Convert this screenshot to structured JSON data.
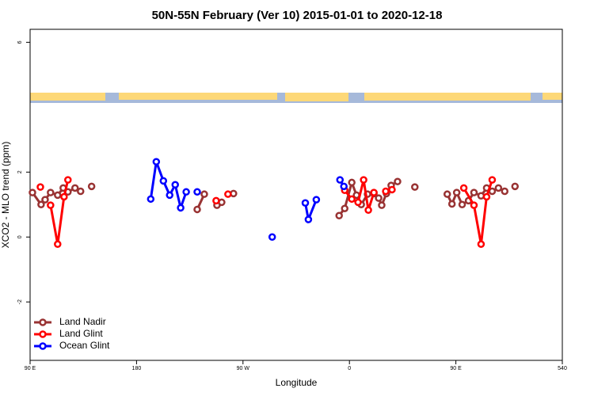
{
  "chart_data": {
    "type": "line",
    "title": "50N-55N February (Ver 10)   2015-01-01 to 2020-12-18",
    "x_label": "Longitude",
    "y_label": "XCO2 - MLO trend (ppm)",
    "xlim": [
      90,
      540
    ],
    "xticks": [
      {
        "value": 90,
        "label": "90 E"
      },
      180,
      {
        "value": 270,
        "label": "90 W"
      },
      {
        "value": 360,
        "label": "0"
      },
      {
        "value": 450,
        "label": "90 E"
      },
      540
    ],
    "ylim": [
      -3.8,
      6.4
    ],
    "yticks": [
      -2,
      0,
      2,
      6
    ],
    "legend": "bottomleft",
    "series": [
      {
        "name": "Land Nadir",
        "color": "#993333",
        "x": [
          92,
          99.3,
          102.7,
          107.3,
          113.3,
          118,
          122,
          128,
          132.7,
          null,
          142,
          null,
          231.3,
          237.3,
          null,
          248,
          252,
          null,
          262,
          null,
          351.3,
          356,
          362,
          366,
          370,
          375.3,
          380.7,
          384.7,
          387.3,
          391.3,
          395.3,
          400.7,
          null,
          415.3,
          null,
          442.7,
          446.7,
          450.7,
          455.3,
          460.7,
          465.3,
          471.3,
          476,
          480.7,
          486,
          491.3,
          null,
          500
        ],
        "values": [
          1.37,
          1.0,
          1.15,
          1.37,
          1.29,
          1.51,
          1.39,
          1.51,
          1.41,
          null,
          1.56,
          null,
          0.85,
          1.32,
          null,
          0.98,
          1.07,
          null,
          1.34,
          null,
          0.66,
          0.88,
          1.68,
          1.29,
          1.0,
          1.32,
          1.34,
          1.2,
          0.98,
          1.34,
          1.59,
          1.71,
          null,
          1.54,
          null,
          1.32,
          1.02,
          1.37,
          1.0,
          1.12,
          1.37,
          1.27,
          1.51,
          1.41,
          1.51,
          1.41,
          null,
          1.56
        ]
      },
      {
        "name": "Land Glint",
        "color": "#ff0000",
        "x": [
          98.7,
          null,
          107.3,
          113.3,
          118.7,
          122,
          null,
          247.3,
          null,
          257.3,
          null,
          356,
          362,
          367.3,
          372,
          376,
          380.7,
          null,
          390.7,
          396,
          null,
          456.7,
          465.3,
          471.3,
          476,
          480.7
        ],
        "values": [
          1.54,
          null,
          0.98,
          -0.22,
          1.24,
          1.76,
          null,
          1.12,
          null,
          1.32,
          null,
          1.44,
          1.17,
          1.07,
          1.76,
          0.83,
          1.37,
          null,
          1.41,
          1.46,
          null,
          1.51,
          0.98,
          -0.22,
          1.24,
          1.76
        ]
      },
      {
        "name": "Ocean Glint",
        "color": "#0000ff",
        "x": [
          192,
          196.7,
          202.7,
          208,
          212.7,
          217.3,
          222,
          null,
          231.3,
          null,
          294.7,
          null,
          322.7,
          325.3,
          332,
          null,
          352,
          355.3
        ],
        "values": [
          1.17,
          2.32,
          1.73,
          1.29,
          1.61,
          0.9,
          1.39,
          null,
          1.39,
          null,
          0,
          null,
          1.05,
          0.54,
          1.15,
          null,
          1.76,
          1.56
        ]
      }
    ]
  }
}
